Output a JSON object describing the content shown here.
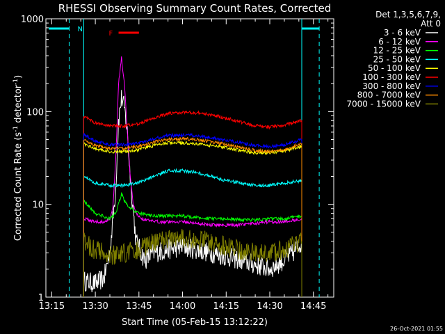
{
  "chart_data": {
    "type": "line",
    "title": "RHESSI Observing Summary Count Rates, Corrected",
    "xlabel": "Start Time (05-Feb-15 13:12:22)",
    "ylabel": "Corrected Count Rate (s",
    "ylabel_sup1": "-1",
    "ylabel_mid": " detector",
    "ylabel_sup2": "-1",
    "ylabel_end": ")",
    "yscale": "log",
    "ylim": [
      1,
      1000
    ],
    "xlim_min": [
      13,
      225
    ],
    "xticks": [
      {
        "min": 15,
        "label": "13:15"
      },
      {
        "min": 30,
        "label": "13:30"
      },
      {
        "min": 45,
        "label": "13:45"
      },
      {
        "min": 60,
        "label": "14:00"
      },
      {
        "min": 75,
        "label": "14:15"
      },
      {
        "min": 90,
        "label": "14:30"
      },
      {
        "min": 105,
        "label": "14:45"
      }
    ],
    "yticks": [
      {
        "value": 1,
        "label": "1"
      },
      {
        "value": 10,
        "label": "10"
      },
      {
        "value": 100,
        "label": "100"
      },
      {
        "value": 1000,
        "label": "1000"
      }
    ],
    "legend_header": "Det 1,3,5,6,7,9,",
    "legend_subheader": "Att 0",
    "legend_position": "right",
    "timestamp": "26-Oct-2021 01:55",
    "flags": {
      "night_label": "N",
      "flare_label": "F",
      "night_bars": [
        [
          14,
          21
        ],
        [
          101,
          107
        ]
      ],
      "flare_bar": [
        38,
        45
      ],
      "saa_dashes": [
        21,
        107
      ],
      "band_lines": [
        26,
        101
      ]
    },
    "series": [
      {
        "name": "3 - 6 keV",
        "color": "#ffffff",
        "x": [
          26,
          30,
          33,
          35,
          37,
          38,
          39,
          40,
          41,
          42,
          44,
          47,
          50,
          60,
          70,
          80,
          90,
          95,
          98,
          101
        ],
        "y": [
          1.5,
          1.4,
          1.6,
          3,
          15,
          80,
          140,
          110,
          60,
          20,
          4,
          2.5,
          3,
          3.5,
          3,
          2.5,
          2,
          2.5,
          3,
          4
        ]
      },
      {
        "name": "6 - 12 keV",
        "color": "#ff00ff",
        "x": [
          26,
          30,
          33,
          35,
          36,
          37,
          38,
          39,
          40,
          41,
          42,
          43,
          44,
          46,
          50,
          60,
          70,
          80,
          90,
          95,
          101
        ],
        "y": [
          7,
          6.5,
          6.5,
          7,
          9,
          30,
          200,
          380,
          200,
          60,
          20,
          10,
          8,
          7,
          6.5,
          6.5,
          6,
          6,
          6.5,
          6.5,
          7
        ]
      },
      {
        "name": "12 - 25 keV",
        "color": "#00ff00",
        "x": [
          26,
          30,
          35,
          37,
          38,
          39,
          40,
          42,
          45,
          50,
          55,
          60,
          65,
          70,
          75,
          80,
          85,
          90,
          95,
          101
        ],
        "y": [
          11,
          8,
          7,
          8,
          10,
          13,
          11,
          9,
          8,
          7.5,
          7.5,
          7.5,
          7.2,
          7,
          7,
          6.8,
          6.8,
          7,
          7,
          7.5
        ]
      },
      {
        "name": "25 - 50 keV",
        "color": "#00ffff",
        "x": [
          26,
          30,
          35,
          40,
          45,
          50,
          55,
          60,
          65,
          70,
          75,
          80,
          85,
          90,
          95,
          101
        ],
        "y": [
          20,
          17,
          16,
          16,
          17,
          20,
          23,
          23,
          22,
          20,
          18,
          17,
          16,
          16,
          17,
          18
        ]
      },
      {
        "name": "50 - 100 keV",
        "color": "#ffff00",
        "x": [
          26,
          30,
          35,
          40,
          45,
          50,
          55,
          60,
          65,
          70,
          75,
          80,
          85,
          90,
          95,
          101
        ],
        "y": [
          45,
          40,
          37,
          37,
          39,
          43,
          46,
          46,
          45,
          43,
          41,
          38,
          36,
          36,
          38,
          42
        ]
      },
      {
        "name": "100 - 300 keV",
        "color": "#ff0000",
        "x": [
          26,
          30,
          35,
          40,
          45,
          50,
          55,
          60,
          65,
          70,
          75,
          80,
          85,
          90,
          95,
          101
        ],
        "y": [
          90,
          75,
          70,
          70,
          74,
          85,
          95,
          98,
          97,
          92,
          85,
          77,
          70,
          68,
          72,
          80
        ]
      },
      {
        "name": "300 - 800 keV",
        "color": "#0000ff",
        "x": [
          26,
          30,
          35,
          40,
          45,
          50,
          55,
          60,
          65,
          70,
          75,
          80,
          85,
          90,
          95,
          101
        ],
        "y": [
          57,
          48,
          44,
          44,
          46,
          51,
          55,
          56,
          55,
          52,
          49,
          46,
          43,
          42,
          44,
          50
        ]
      },
      {
        "name": "800 - 7000 keV",
        "color": "#ff8c00",
        "x": [
          26,
          30,
          35,
          40,
          45,
          50,
          55,
          60,
          65,
          70,
          75,
          80,
          85,
          90,
          95,
          101
        ],
        "y": [
          50,
          43,
          40,
          40,
          42,
          47,
          50,
          51,
          50,
          47,
          44,
          41,
          38,
          37,
          39,
          45
        ]
      },
      {
        "name": "7000 - 15000 keV",
        "color": "#808000",
        "x": [
          26,
          30,
          35,
          40,
          45,
          50,
          55,
          60,
          65,
          70,
          75,
          80,
          85,
          90,
          95,
          101
        ],
        "y": [
          4,
          3.2,
          2.8,
          3,
          3.3,
          3.8,
          4.2,
          4.3,
          4.2,
          3.9,
          3.5,
          3.2,
          3,
          3,
          3.3,
          4
        ]
      }
    ]
  }
}
